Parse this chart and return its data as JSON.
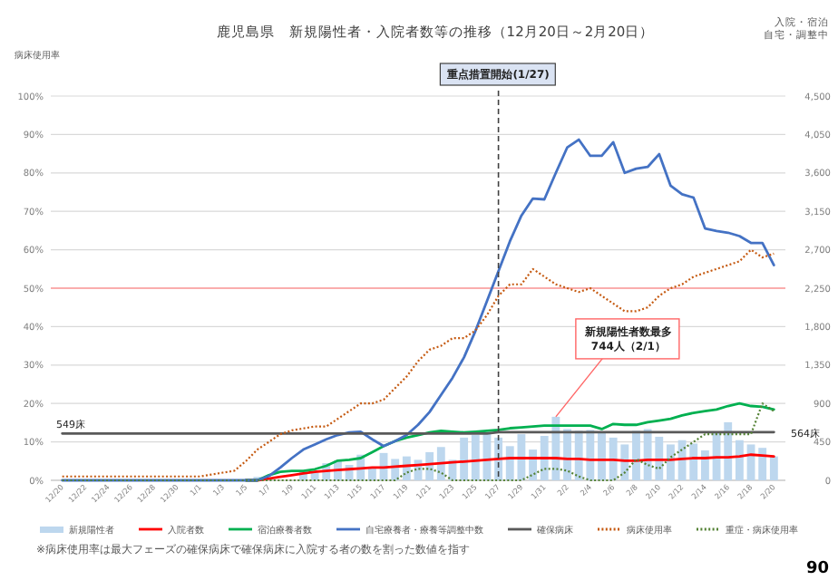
{
  "chart_data": {
    "type": "line",
    "title": "鹿児島県　新規陽性者・入院者数等の推移（12月20日～2月20日）",
    "ylabel": "病床使用率",
    "categories": [
      "12/20",
      null,
      "12/22",
      null,
      "12/24",
      null,
      "12/26",
      null,
      "12/28",
      null,
      "12/30",
      null,
      "1/1",
      null,
      "1/3",
      null,
      "1/5",
      null,
      "1/7",
      null,
      "1/9",
      null,
      "1/11",
      null,
      "1/13",
      null,
      "1/15",
      null,
      "1/17",
      null,
      "1/19",
      null,
      "1/21",
      null,
      "1/23",
      null,
      "1/25",
      null,
      "1/27",
      null,
      "1/29",
      null,
      "1/31",
      null,
      "2/2",
      null,
      "2/4",
      null,
      "2/6",
      null,
      "2/8",
      null,
      "2/10",
      null,
      "2/12",
      null,
      "2/14",
      null,
      "2/16",
      null,
      "2/18",
      null,
      "2/20"
    ],
    "y2lim": [
      0,
      4500
    ],
    "y2ticks": [
      {
        "value": 0,
        "label": "0"
      },
      {
        "value": 450,
        "label": "450"
      },
      {
        "value": 900,
        "label": "900"
      },
      {
        "value": 1350,
        "label": "1,350"
      },
      {
        "value": 1800,
        "label": "1,800"
      },
      {
        "value": 2250,
        "label": "2,250"
      },
      {
        "value": 2700,
        "label": "2,700"
      },
      {
        "value": 3150,
        "label": "3,150"
      },
      {
        "value": 3600,
        "label": "3,600"
      },
      {
        "value": 4050,
        "label": "4,050"
      },
      {
        "value": 4500,
        "label": "4,500"
      }
    ],
    "ylim": [
      0,
      100
    ],
    "yticks": [
      {
        "value": 0,
        "label": "0%"
      },
      {
        "value": 10,
        "label": "10%"
      },
      {
        "value": 20,
        "label": "20%"
      },
      {
        "value": 30,
        "label": "30%"
      },
      {
        "value": 40,
        "label": "40%"
      },
      {
        "value": 50,
        "label": "50%"
      },
      {
        "value": 60,
        "label": "60%"
      },
      {
        "value": 70,
        "label": "70%"
      },
      {
        "value": 80,
        "label": "80%"
      },
      {
        "value": 90,
        "label": "90%"
      },
      {
        "value": 100,
        "label": "100%"
      }
    ],
    "grid": "y",
    "legend": "bottom",
    "marker": "none",
    "series": [
      {
        "name": "新規陽性者",
        "type": "bar",
        "axis": "y2",
        "color": "#bdd7ee",
        "values": [
          0,
          0,
          0,
          0,
          0,
          0,
          0,
          0,
          0,
          0,
          0,
          0,
          0,
          0,
          10,
          10,
          null,
          40,
          null,
          null,
          null,
          110,
          90,
          200,
          230,
          180,
          300,
          150,
          320,
          250,
          280,
          240,
          330,
          390,
          240,
          500,
          530,
          540,
          500,
          400,
          540,
          360,
          520,
          744,
          600,
          580,
          590,
          560,
          500,
          420,
          580,
          600,
          510,
          420,
          470,
          430,
          350,
          560,
          680,
          470,
          420,
          380,
          280
        ]
      },
      {
        "name": "入院者数",
        "axis": "y2",
        "color": "#ff0000",
        "line_style": "solid",
        "values": [
          null,
          null,
          null,
          null,
          null,
          null,
          null,
          null,
          null,
          null,
          null,
          null,
          null,
          null,
          null,
          null,
          0,
          0,
          20,
          40,
          60,
          80,
          100,
          110,
          120,
          130,
          140,
          150,
          150,
          160,
          170,
          180,
          190,
          200,
          210,
          220,
          230,
          240,
          250,
          260,
          260,
          260,
          260,
          260,
          250,
          250,
          240,
          240,
          240,
          230,
          230,
          240,
          240,
          240,
          250,
          260,
          260,
          270,
          270,
          280,
          300,
          290,
          280
        ]
      },
      {
        "name": "宿泊療養者数",
        "axis": "y2",
        "color": "#00b050",
        "line_style": "solid",
        "values": [
          null,
          null,
          null,
          null,
          null,
          null,
          null,
          null,
          null,
          null,
          null,
          null,
          null,
          null,
          null,
          null,
          0,
          0,
          60,
          100,
          110,
          110,
          130,
          170,
          230,
          240,
          260,
          330,
          400,
          460,
          500,
          530,
          560,
          580,
          570,
          560,
          570,
          580,
          590,
          610,
          620,
          630,
          640,
          640,
          640,
          640,
          640,
          600,
          660,
          650,
          650,
          680,
          700,
          720,
          760,
          790,
          810,
          830,
          870,
          900,
          870,
          860,
          830
        ]
      },
      {
        "name": "自宅療養者・療養等調整中数",
        "axis": "y2",
        "color": "#4472c4",
        "line_style": "solid",
        "values": [
          0,
          0,
          0,
          0,
          0,
          0,
          0,
          0,
          0,
          0,
          0,
          0,
          0,
          0,
          0,
          0,
          0,
          0,
          50,
          150,
          260,
          360,
          420,
          480,
          530,
          560,
          570,
          480,
          400,
          460,
          530,
          650,
          800,
          1000,
          1200,
          1440,
          1750,
          2100,
          2450,
          2800,
          3100,
          3300,
          3290,
          3600,
          3900,
          3990,
          3800,
          3800,
          3960,
          3600,
          3650,
          3670,
          3820,
          3450,
          3350,
          3310,
          2950,
          2920,
          2900,
          2860,
          2780,
          2780,
          2520
        ]
      },
      {
        "name": "確保病床",
        "axis": "y2",
        "color": "#595959",
        "line_style": "solid",
        "values": [
          549,
          549,
          549,
          549,
          549,
          549,
          549,
          549,
          549,
          549,
          549,
          549,
          549,
          549,
          549,
          549,
          549,
          549,
          549,
          549,
          549,
          549,
          549,
          549,
          549,
          549,
          549,
          549,
          549,
          549,
          549,
          549,
          549,
          549,
          549,
          549,
          549,
          549,
          564,
          564,
          564,
          564,
          564,
          564,
          564,
          564,
          564,
          564,
          564,
          564,
          564,
          564,
          564,
          564,
          564,
          564,
          564,
          564,
          564,
          564,
          564,
          564,
          564
        ]
      },
      {
        "name": "病床使用率",
        "color": "#c55a11",
        "line_style": "dotted",
        "values": [
          1,
          1,
          1,
          1,
          1,
          1,
          1,
          1,
          1,
          1,
          1,
          1,
          1,
          1.5,
          2,
          2.5,
          5,
          8,
          10,
          12,
          13,
          13.5,
          14,
          14,
          16,
          18,
          20,
          20,
          21,
          24,
          27,
          31,
          34,
          35,
          37,
          37,
          39,
          43,
          48,
          51,
          51,
          55,
          53,
          51,
          50,
          49,
          50,
          48,
          46,
          44,
          44,
          45,
          48,
          50,
          51,
          53,
          54,
          55,
          56,
          57,
          60,
          58,
          59
        ]
      },
      {
        "name": "重症・病床使用率",
        "color": "#548235",
        "line_style": "dotted",
        "values": [
          0,
          0,
          0,
          0,
          0,
          0,
          0,
          0,
          0,
          0,
          0,
          0,
          0,
          0,
          0,
          0,
          0,
          0,
          0,
          0,
          0,
          0,
          0,
          0,
          0,
          0,
          0,
          0,
          0,
          0,
          2,
          3,
          3,
          2,
          0,
          0,
          0,
          0,
          0,
          0,
          0,
          1.5,
          3,
          3,
          2.5,
          1,
          0,
          0,
          0,
          2,
          5.5,
          4,
          3,
          6,
          8,
          10,
          12,
          12,
          12,
          12,
          12,
          20,
          18
        ]
      }
    ],
    "ref_lines": [
      {
        "axis": "x",
        "value": "1/27",
        "label": "重点措置開始(1/27)",
        "color": "#404040",
        "line_style": "dashed"
      },
      {
        "axis": "y",
        "value": 50,
        "color": "#ff9999",
        "line_style": "solid"
      }
    ],
    "annotations": [
      "※病床使用率は最大フェーズの確保病床で確保病床に入院する者の数を割った数値を指す",
      "90",
      "新規陽性者数最多",
      "744人（2/1）",
      "549床",
      "564床",
      "入院・宿泊自宅・調整中"
    ]
  }
}
